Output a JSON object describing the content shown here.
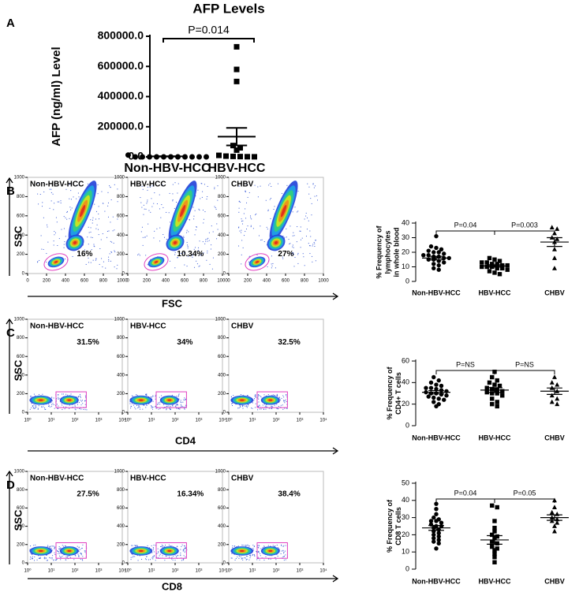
{
  "chart_data": [
    {
      "type": "dotplot",
      "label": "A",
      "title": "AFP Levels",
      "ylabel": "AFP (ng/ml) Level",
      "categories": [
        "Non-HBV-HCC",
        "HBV-HCC"
      ],
      "markers": [
        "circle",
        "square"
      ],
      "color": "#000000",
      "values": [
        [
          0,
          0,
          0,
          0,
          0,
          0,
          0,
          0,
          0,
          0,
          0,
          12000
        ],
        [
          730000,
          580000,
          500000,
          75000,
          60000,
          45000,
          10000,
          5000,
          3000,
          2000,
          1000,
          500
        ]
      ],
      "means": [
        3000,
        134000
      ],
      "sems": [
        1000,
        58000
      ],
      "brackets": [
        "P=0.014"
      ],
      "ylim": [
        0,
        800000
      ],
      "yticks": [
        {
          "value": 0,
          "label": "0.0"
        },
        {
          "value": 200000,
          "label": "200000.0"
        },
        {
          "value": 400000,
          "label": "400000.0"
        },
        {
          "value": 600000,
          "label": "600000.0"
        },
        {
          "value": 800000,
          "label": "800000.0"
        }
      ]
    },
    {
      "type": "dotplot",
      "ylabel": [
        "% Frequency of",
        "lymphocytes",
        "in whole blood"
      ],
      "categories": [
        "Non-HBV-HCC",
        "HBV-HCC",
        "CHBV"
      ],
      "markers": [
        "circle",
        "square",
        "triangle"
      ],
      "color": "#000000",
      "values": [
        [
          31,
          24,
          22,
          21,
          20,
          20,
          19,
          18,
          18,
          17,
          17,
          16,
          16,
          15,
          15,
          14,
          13,
          12,
          11,
          9,
          8,
          23
        ],
        [
          16,
          15,
          14,
          13,
          12,
          12,
          11,
          11,
          10,
          10,
          10,
          9,
          9,
          8,
          7,
          6,
          5,
          13
        ],
        [
          37,
          36,
          33,
          30,
          29,
          27,
          22,
          16,
          9
        ]
      ],
      "means": [
        16,
        10.6,
        27
      ],
      "sems": [
        1.2,
        0.8,
        3
      ],
      "brackets": [
        "P=0.04",
        "P=0.003"
      ],
      "ylim": [
        0,
        40
      ],
      "yticks": [
        0,
        10,
        20,
        30,
        40
      ]
    },
    {
      "type": "dotplot",
      "ylabel": [
        "% Frequency of",
        "CD4+ T cells"
      ],
      "categories": [
        "Non-HBV-HCC",
        "HBV-HCC",
        "CHBV"
      ],
      "markers": [
        "circle",
        "square",
        "triangle"
      ],
      "color": "#000000",
      "values": [
        [
          45,
          42,
          40,
          38,
          37,
          35,
          34,
          33,
          32,
          31,
          30,
          30,
          29,
          28,
          27,
          26,
          25,
          24,
          22,
          20,
          18,
          35
        ],
        [
          50,
          45,
          42,
          40,
          38,
          37,
          35,
          34,
          33,
          32,
          31,
          30,
          28,
          25,
          22,
          20,
          18,
          30
        ],
        [
          45,
          40,
          38,
          35,
          32,
          28,
          25,
          22,
          20
        ]
      ],
      "means": [
        31,
        33,
        32
      ],
      "sems": [
        1.5,
        2.2,
        3
      ],
      "brackets": [
        "P=NS",
        "P=NS"
      ],
      "ylim": [
        0,
        60
      ],
      "yticks": [
        0,
        20,
        40,
        60
      ]
    },
    {
      "type": "dotplot",
      "ylabel": [
        "% Frequency of",
        "CD8 T cells"
      ],
      "categories": [
        "Non-HBV-HCC",
        "HBV-HCC",
        "CHBV"
      ],
      "markers": [
        "circle",
        "square",
        "triangle"
      ],
      "color": "#000000",
      "values": [
        [
          38,
          35,
          32,
          30,
          29,
          28,
          27,
          26,
          25,
          25,
          24,
          23,
          22,
          21,
          20,
          19,
          18,
          17,
          16,
          15,
          12,
          28
        ],
        [
          37,
          36,
          28,
          24,
          22,
          20,
          19,
          18,
          16,
          15,
          13,
          12,
          11,
          9,
          7,
          4
        ],
        [
          40,
          36,
          33,
          32,
          30,
          29,
          28,
          27,
          25,
          22
        ]
      ],
      "means": [
        24,
        17,
        30
      ],
      "sems": [
        1.4,
        2.5,
        1.6
      ],
      "brackets": [
        "P=0.04",
        "P=0.05"
      ],
      "ylim": [
        0,
        50
      ],
      "yticks": [
        0,
        10,
        20,
        30,
        40,
        50
      ]
    }
  ],
  "flow_rows": [
    {
      "label": "B",
      "ylabel": "SSC",
      "xlabel": "FSC",
      "log_x": false,
      "xlim": [
        0,
        1000
      ],
      "ylim": [
        0,
        1000
      ],
      "xticks": [
        0,
        200,
        400,
        600,
        800,
        1000
      ],
      "yticks": [
        0,
        200,
        400,
        600,
        800,
        1000
      ],
      "panels": [
        {
          "name": "Non-HBV-HCC",
          "gate_percent": "16%"
        },
        {
          "name": "HBV-HCC",
          "gate_percent": "10.34%"
        },
        {
          "name": "CHBV",
          "gate_percent": "27%"
        }
      ]
    },
    {
      "label": "C",
      "ylabel": "SSC",
      "xlabel": "CD4",
      "log_x": true,
      "xlim": [
        1,
        10000
      ],
      "ylim": [
        0,
        1000
      ],
      "xticks": [
        {
          "value": 1,
          "label": "10⁰"
        },
        {
          "value": 10,
          "label": "10¹"
        },
        {
          "value": 100,
          "label": "10²"
        },
        {
          "value": 1000,
          "label": "10³"
        },
        {
          "value": 10000,
          "label": "10⁴"
        }
      ],
      "yticks": [
        0,
        200,
        400,
        600,
        800,
        1000
      ],
      "panels": [
        {
          "name": "Non-HBV-HCC",
          "gate_percent": "31.5%"
        },
        {
          "name": "HBV-HCC",
          "gate_percent": "34%"
        },
        {
          "name": "CHBV",
          "gate_percent": "32.5%"
        }
      ]
    },
    {
      "label": "D",
      "ylabel": "SSC",
      "xlabel": "CD8",
      "log_x": true,
      "xlim": [
        1,
        10000
      ],
      "ylim": [
        0,
        1000
      ],
      "xticks": [
        {
          "value": 1,
          "label": "10⁰"
        },
        {
          "value": 10,
          "label": "10¹"
        },
        {
          "value": 100,
          "label": "10²"
        },
        {
          "value": 1000,
          "label": "10³"
        },
        {
          "value": 10000,
          "label": "10⁴"
        }
      ],
      "yticks": [
        0,
        200,
        400,
        600,
        800,
        1000
      ],
      "panels": [
        {
          "name": "Non-HBV-HCC",
          "gate_percent": "27.5%"
        },
        {
          "name": "HBV-HCC",
          "gate_percent": "16.34%"
        },
        {
          "name": "CHBV",
          "gate_percent": "38.4%"
        }
      ]
    }
  ]
}
